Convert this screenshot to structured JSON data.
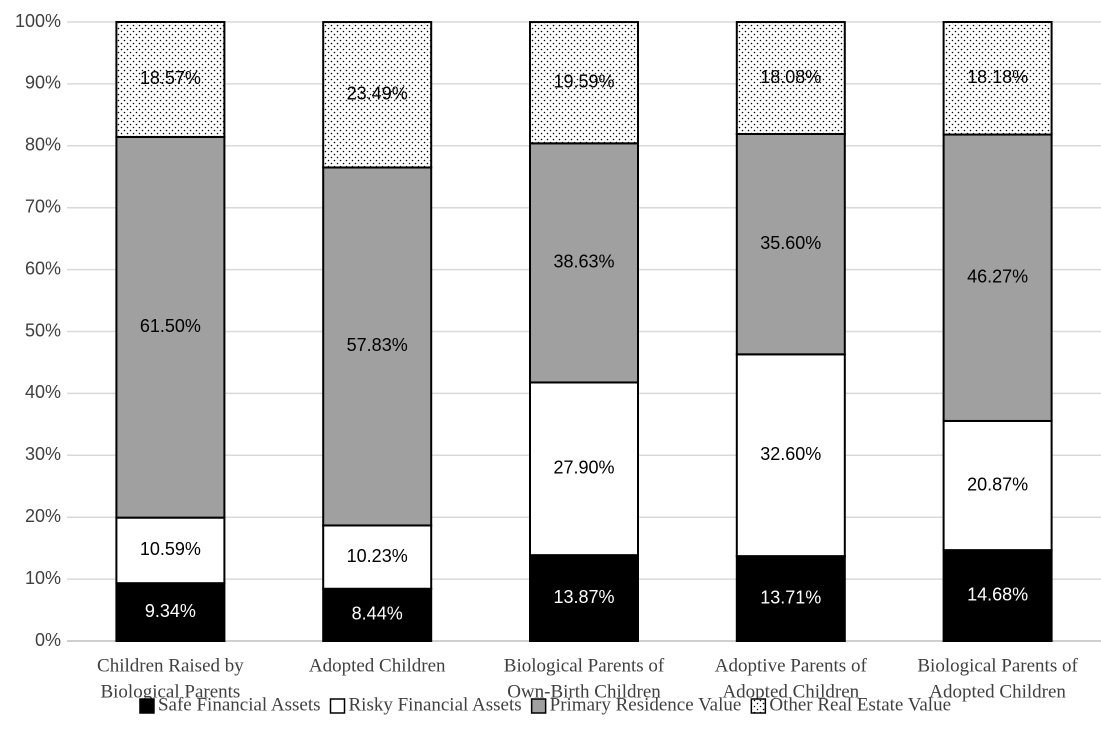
{
  "chart_data": {
    "type": "stacked_bar",
    "categories": [
      [
        "Children Raised by",
        "Biological Parents"
      ],
      [
        "Adopted Children"
      ],
      [
        "Biological Parents of",
        "Own-Birth Children"
      ],
      [
        "Adoptive Parents of",
        "Adopted Children"
      ],
      [
        "Biological Parents of",
        "Adopted Children"
      ]
    ],
    "series": [
      {
        "name": "Safe Financial Assets",
        "color": "#000000",
        "values": [
          9.34,
          8.44,
          13.87,
          13.71,
          14.68
        ],
        "value_labels": [
          "9.34%",
          "8.44%",
          "13.87%",
          "13.71%",
          "14.68%"
        ]
      },
      {
        "name": "Risky Financial Assets",
        "color": "#ffffff",
        "values": [
          10.59,
          10.23,
          27.9,
          32.6,
          20.87
        ],
        "value_labels": [
          "10.59%",
          "10.23%",
          "27.90%",
          "32.60%",
          "20.87%"
        ]
      },
      {
        "name": "Primary Residence Value",
        "color": "#a0a0a0",
        "values": [
          61.5,
          57.83,
          38.63,
          35.6,
          46.27
        ],
        "value_labels": [
          "61.50%",
          "57.83%",
          "38.63%",
          "35.60%",
          "46.27%"
        ]
      },
      {
        "name": "Other Real Estate Value",
        "color": "#ffffff",
        "pattern": "dots",
        "values": [
          18.57,
          23.49,
          19.59,
          18.08,
          18.18
        ],
        "value_labels": [
          "18.57%",
          "23.49%",
          "19.59%",
          "18.08%",
          "18.18%"
        ]
      }
    ],
    "ylim": [
      0,
      100
    ],
    "yticks": [
      {
        "value": 0,
        "label": "0%"
      },
      {
        "value": 10,
        "label": "10%"
      },
      {
        "value": 20,
        "label": "20%"
      },
      {
        "value": 30,
        "label": "30%"
      },
      {
        "value": 40,
        "label": "40%"
      },
      {
        "value": 50,
        "label": "50%"
      },
      {
        "value": 60,
        "label": "60%"
      },
      {
        "value": 70,
        "label": "70%"
      },
      {
        "value": 80,
        "label": "80%"
      },
      {
        "value": 90,
        "label": "90%"
      },
      {
        "value": 100,
        "label": "100%"
      }
    ],
    "grid": true,
    "legend": "bottom"
  }
}
